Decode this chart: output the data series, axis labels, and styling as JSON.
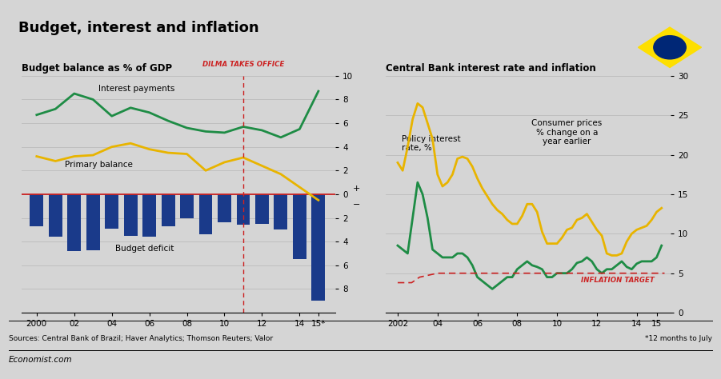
{
  "title": "Budget, interest and inflation",
  "bg_color": "#d5d5d5",
  "left_subtitle": "Budget balance as % of GDP",
  "right_subtitle": "Central Bank interest rate and inflation",
  "sources": "Sources: Central Bank of Brazil; Haver Analytics; Thomson Reuters; Valor",
  "footnote": "*12 months to July",
  "economist": "Economist.com",
  "dilma_label": "DILMA TAKES OFFICE",
  "inflation_target_label": "INFLATION TARGET",
  "left_years": [
    2000,
    2001,
    2002,
    2003,
    2004,
    2005,
    2006,
    2007,
    2008,
    2009,
    2010,
    2011,
    2012,
    2013,
    2014,
    2015
  ],
  "budget_deficit": [
    -2.7,
    -3.6,
    -4.8,
    -4.7,
    -2.9,
    -3.5,
    -3.6,
    -2.7,
    -2.0,
    -3.4,
    -2.4,
    -2.6,
    -2.5,
    -3.0,
    -5.5,
    -9.0
  ],
  "primary_balance": [
    3.2,
    2.8,
    3.2,
    3.3,
    4.0,
    4.3,
    3.8,
    3.5,
    3.4,
    2.0,
    2.7,
    3.1,
    2.4,
    1.7,
    0.6,
    -0.5
  ],
  "interest_payments": [
    6.7,
    7.2,
    8.5,
    8.0,
    6.6,
    7.3,
    6.9,
    6.2,
    5.6,
    5.3,
    5.2,
    5.7,
    5.4,
    4.8,
    5.5,
    8.7
  ],
  "right_years_q": [
    2002.0,
    2002.25,
    2002.5,
    2002.75,
    2003.0,
    2003.25,
    2003.5,
    2003.75,
    2004.0,
    2004.25,
    2004.5,
    2004.75,
    2005.0,
    2005.25,
    2005.5,
    2005.75,
    2006.0,
    2006.25,
    2006.5,
    2006.75,
    2007.0,
    2007.25,
    2007.5,
    2007.75,
    2008.0,
    2008.25,
    2008.5,
    2008.75,
    2009.0,
    2009.25,
    2009.5,
    2009.75,
    2010.0,
    2010.25,
    2010.5,
    2010.75,
    2011.0,
    2011.25,
    2011.5,
    2011.75,
    2012.0,
    2012.25,
    2012.5,
    2012.75,
    2013.0,
    2013.25,
    2013.5,
    2013.75,
    2014.0,
    2014.25,
    2014.5,
    2014.75,
    2015.0,
    2015.25
  ],
  "policy_rate": [
    19.0,
    18.0,
    21.0,
    24.5,
    26.5,
    26.0,
    24.0,
    22.0,
    17.5,
    16.0,
    16.5,
    17.5,
    19.5,
    19.75,
    19.5,
    18.5,
    17.0,
    15.75,
    14.75,
    13.75,
    13.0,
    12.5,
    11.75,
    11.25,
    11.25,
    12.25,
    13.75,
    13.75,
    12.75,
    10.25,
    8.75,
    8.75,
    8.75,
    9.5,
    10.5,
    10.75,
    11.75,
    12.0,
    12.5,
    11.5,
    10.5,
    9.75,
    7.5,
    7.25,
    7.25,
    7.5,
    9.0,
    10.0,
    10.5,
    10.75,
    11.0,
    11.75,
    12.75,
    13.25
  ],
  "inflation": [
    8.5,
    8.0,
    7.5,
    12.0,
    16.5,
    15.0,
    12.0,
    8.0,
    7.5,
    7.0,
    7.0,
    7.0,
    7.5,
    7.5,
    7.0,
    6.0,
    4.5,
    4.0,
    3.5,
    3.0,
    3.5,
    4.0,
    4.5,
    4.5,
    5.5,
    6.0,
    6.5,
    6.0,
    5.8,
    5.5,
    4.5,
    4.5,
    5.0,
    5.0,
    5.0,
    5.5,
    6.3,
    6.5,
    7.0,
    6.5,
    5.5,
    5.0,
    5.5,
    5.5,
    6.0,
    6.5,
    5.8,
    5.5,
    6.2,
    6.5,
    6.5,
    6.5,
    7.0,
    8.5
  ],
  "infl_target_x": [
    2002.0,
    2002.7,
    2003.1,
    2004.0,
    2015.4
  ],
  "infl_target_y": [
    3.8,
    3.8,
    4.5,
    5.0,
    5.0
  ],
  "colors": {
    "interest_payments": "#1e8c45",
    "primary_balance": "#e8b400",
    "budget_deficit": "#1a3a8a",
    "policy_rate": "#e8b400",
    "inflation": "#1e8c45",
    "inflation_target": "#cc2222",
    "zero_line": "#cc2222",
    "dilma_line": "#cc2222",
    "title_bar": "#cc2222",
    "grid": "#bbbbbb",
    "flag_green": "#009c3b",
    "flag_yellow": "#FEDF00",
    "flag_blue": "#002776"
  }
}
